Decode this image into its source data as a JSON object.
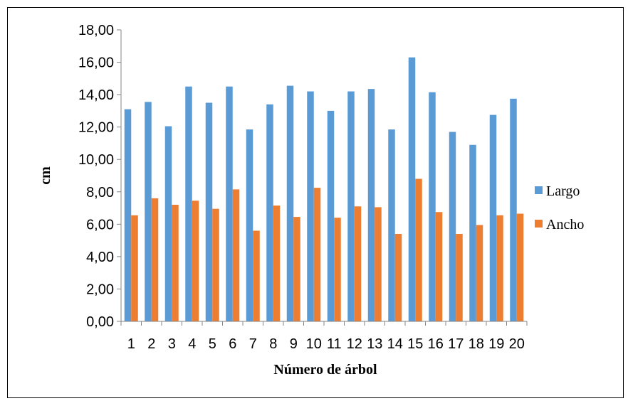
{
  "chart_data": {
    "type": "bar",
    "title": "",
    "xlabel": "Número de árbol",
    "ylabel": "cm",
    "ylim": [
      0,
      18
    ],
    "yticks": [
      "0,00",
      "2,00",
      "4,00",
      "6,00",
      "8,00",
      "10,00",
      "12,00",
      "14,00",
      "16,00",
      "18,00"
    ],
    "categories": [
      "1",
      "2",
      "3",
      "4",
      "5",
      "6",
      "7",
      "8",
      "9",
      "10",
      "11",
      "12",
      "13",
      "14",
      "15",
      "16",
      "17",
      "18",
      "19",
      "20"
    ],
    "series": [
      {
        "name": "Largo",
        "color": "#5B9BD5",
        "values": [
          13.1,
          13.55,
          12.05,
          14.5,
          13.5,
          14.5,
          11.85,
          13.4,
          14.55,
          14.2,
          13.0,
          14.2,
          14.35,
          11.85,
          16.3,
          14.15,
          11.7,
          10.9,
          12.75,
          13.75
        ]
      },
      {
        "name": "Ancho",
        "color": "#ED7D31",
        "values": [
          6.55,
          7.6,
          7.2,
          7.45,
          6.95,
          8.15,
          5.6,
          7.15,
          6.45,
          8.25,
          6.4,
          7.1,
          7.05,
          5.4,
          8.8,
          6.75,
          5.4,
          5.95,
          6.55,
          6.65
        ]
      }
    ],
    "grid": false,
    "legend_position": "right"
  }
}
